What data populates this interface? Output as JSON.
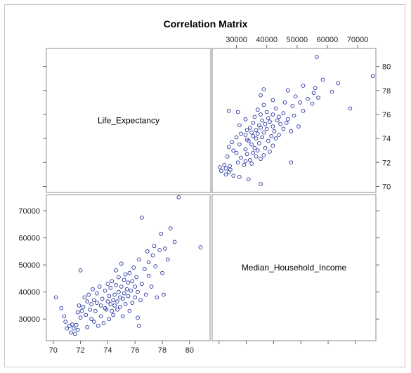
{
  "chart_data": {
    "type": "scatter",
    "title": "Correlation Matrix",
    "variables": [
      "Life_Expectancy",
      "Median_Household_Income"
    ],
    "matrix": "2x2 scatterplot matrix; variable names on diagonal",
    "axes": {
      "Life_Expectancy": {
        "range": [
          69.5,
          81.5
        ],
        "ticks": [
          70,
          72,
          74,
          76,
          78,
          80
        ],
        "tick_labels": [
          "70",
          "72",
          "74",
          "76",
          "78",
          "80"
        ]
      },
      "Median_Household_Income": {
        "range": [
          22000,
          76000
        ],
        "ticks": [
          30000,
          40000,
          50000,
          60000,
          70000
        ],
        "tick_labels": [
          "30000",
          "40000",
          "50000",
          "60000",
          "70000"
        ]
      }
    },
    "marker": {
      "shape": "open-circle",
      "color": "#1f2f9c"
    },
    "points": [
      [
        70.2,
        38000
      ],
      [
        70.6,
        34000
      ],
      [
        70.8,
        31000
      ],
      [
        70.9,
        29000
      ],
      [
        71.0,
        26500
      ],
      [
        71.2,
        27500
      ],
      [
        71.3,
        25000
      ],
      [
        71.4,
        28000
      ],
      [
        71.5,
        26500
      ],
      [
        71.6,
        24500
      ],
      [
        71.7,
        27800
      ],
      [
        71.8,
        26000
      ],
      [
        71.8,
        32500
      ],
      [
        71.9,
        35000
      ],
      [
        72.0,
        48000
      ],
      [
        72.0,
        30500
      ],
      [
        72.1,
        33000
      ],
      [
        72.2,
        34500
      ],
      [
        72.3,
        38000
      ],
      [
        72.4,
        31500
      ],
      [
        72.5,
        36500
      ],
      [
        72.5,
        27000
      ],
      [
        72.6,
        39000
      ],
      [
        72.7,
        33500
      ],
      [
        72.8,
        30000
      ],
      [
        72.8,
        35500
      ],
      [
        72.9,
        41000
      ],
      [
        73.0,
        37000
      ],
      [
        73.0,
        29000
      ],
      [
        73.1,
        33000
      ],
      [
        73.2,
        36000
      ],
      [
        73.2,
        39500
      ],
      [
        73.3,
        27500
      ],
      [
        73.4,
        42000
      ],
      [
        73.5,
        31000
      ],
      [
        73.5,
        35000
      ],
      [
        73.6,
        37500
      ],
      [
        73.7,
        28500
      ],
      [
        73.8,
        34000
      ],
      [
        73.8,
        40500
      ],
      [
        73.9,
        33500
      ],
      [
        74.0,
        36500
      ],
      [
        74.0,
        43000
      ],
      [
        74.1,
        30000
      ],
      [
        74.1,
        38500
      ],
      [
        74.2,
        35500
      ],
      [
        74.2,
        41500
      ],
      [
        74.3,
        33000
      ],
      [
        74.3,
        44000
      ],
      [
        74.4,
        37000
      ],
      [
        74.4,
        31500
      ],
      [
        74.5,
        39000
      ],
      [
        74.5,
        35000
      ],
      [
        74.6,
        42500
      ],
      [
        74.6,
        48000
      ],
      [
        74.7,
        36500
      ],
      [
        74.7,
        33500
      ],
      [
        74.8,
        40000
      ],
      [
        74.8,
        45500
      ],
      [
        74.9,
        38000
      ],
      [
        74.9,
        34500
      ],
      [
        75.0,
        42000
      ],
      [
        75.0,
        50500
      ],
      [
        75.1,
        37500
      ],
      [
        75.1,
        31000
      ],
      [
        75.2,
        44500
      ],
      [
        75.2,
        39500
      ],
      [
        75.3,
        46500
      ],
      [
        75.3,
        35500
      ],
      [
        75.4,
        41000
      ],
      [
        75.5,
        38500
      ],
      [
        75.5,
        43500
      ],
      [
        75.6,
        47000
      ],
      [
        75.6,
        33000
      ],
      [
        75.7,
        40500
      ],
      [
        75.8,
        36000
      ],
      [
        75.8,
        44000
      ],
      [
        75.9,
        49000
      ],
      [
        76.0,
        42000
      ],
      [
        76.0,
        38000
      ],
      [
        76.1,
        45500
      ],
      [
        76.2,
        30500
      ],
      [
        76.2,
        40000
      ],
      [
        76.3,
        52000
      ],
      [
        76.3,
        27500
      ],
      [
        76.4,
        37000
      ],
      [
        76.5,
        43000
      ],
      [
        76.5,
        67500
      ],
      [
        76.7,
        48500
      ],
      [
        76.8,
        39000
      ],
      [
        76.9,
        55000
      ],
      [
        77.0,
        46000
      ],
      [
        77.0,
        51000
      ],
      [
        77.2,
        42000
      ],
      [
        77.3,
        53500
      ],
      [
        77.4,
        57000
      ],
      [
        77.5,
        49500
      ],
      [
        77.6,
        38000
      ],
      [
        77.8,
        55500
      ],
      [
        77.9,
        61500
      ],
      [
        78.0,
        47000
      ],
      [
        78.1,
        39000
      ],
      [
        78.2,
        56000
      ],
      [
        78.4,
        52000
      ],
      [
        78.6,
        63500
      ],
      [
        78.9,
        58500
      ],
      [
        79.2,
        75000
      ],
      [
        80.8,
        56500
      ]
    ],
    "grid": false,
    "legend": "none"
  }
}
